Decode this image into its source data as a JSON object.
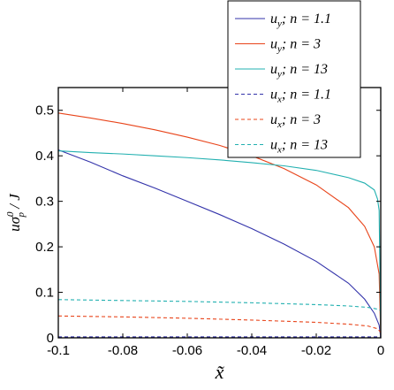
{
  "chart_data": {
    "type": "line",
    "title": "",
    "xlabel": "x̃",
    "ylabel_parts": {
      "u": "u",
      "sigma": "σ",
      "sub": "p",
      "sup": "0",
      "rest": " / J"
    },
    "xlim": [
      -0.1,
      0
    ],
    "ylim": [
      0,
      0.55
    ],
    "xticks": [
      -0.1,
      -0.08,
      -0.06,
      -0.04,
      -0.02,
      0
    ],
    "xtick_labels": [
      "-0.1",
      "-0.08",
      "-0.06",
      "-0.04",
      "-0.02",
      "0"
    ],
    "yticks": [
      0,
      0.1,
      0.2,
      0.3,
      0.4,
      0.5
    ],
    "ytick_labels": [
      "0",
      "0.1",
      "0.2",
      "0.3",
      "0.4",
      "0.5"
    ],
    "grid": false,
    "legend_placement": "top-right (outside above plot)",
    "series": [
      {
        "name": "u_y; n = 1.1",
        "label_var": "u",
        "label_sub": "y",
        "label_rest": "; n = 1.1",
        "color": "#3333aa",
        "dash": "solid",
        "x": [
          -0.1,
          -0.09,
          -0.08,
          -0.07,
          -0.06,
          -0.05,
          -0.04,
          -0.03,
          -0.02,
          -0.01,
          -0.005,
          -0.002,
          -0.0005,
          0
        ],
        "y": [
          0.413,
          0.386,
          0.356,
          0.329,
          0.3,
          0.271,
          0.24,
          0.206,
          0.168,
          0.12,
          0.085,
          0.054,
          0.028,
          0.0
        ]
      },
      {
        "name": "u_y; n = 3",
        "label_var": "u",
        "label_sub": "y",
        "label_rest": "; n = 3",
        "color": "#e8441a",
        "dash": "solid",
        "x": [
          -0.1,
          -0.09,
          -0.08,
          -0.07,
          -0.06,
          -0.05,
          -0.04,
          -0.03,
          -0.02,
          -0.01,
          -0.005,
          -0.002,
          -0.0005,
          0
        ],
        "y": [
          0.494,
          0.483,
          0.471,
          0.457,
          0.441,
          0.423,
          0.4,
          0.372,
          0.336,
          0.286,
          0.245,
          0.2,
          0.14,
          0.0
        ]
      },
      {
        "name": "u_y; n = 13",
        "label_var": "u",
        "label_sub": "y",
        "label_rest": "; n = 13",
        "color": "#22b0b0",
        "dash": "solid",
        "x": [
          -0.1,
          -0.09,
          -0.08,
          -0.07,
          -0.06,
          -0.05,
          -0.04,
          -0.03,
          -0.02,
          -0.01,
          -0.005,
          -0.002,
          -0.001,
          -0.0005,
          0
        ],
        "y": [
          0.411,
          0.407,
          0.404,
          0.4,
          0.396,
          0.391,
          0.385,
          0.378,
          0.368,
          0.352,
          0.34,
          0.325,
          0.305,
          0.28,
          0.0
        ]
      },
      {
        "name": "u_x; n = 1.1",
        "label_var": "u",
        "label_sub": "x",
        "label_rest": "; n = 1.1",
        "color": "#3333aa",
        "dash": "dashed",
        "x": [
          -0.1,
          -0.05,
          -0.02,
          -0.005,
          0
        ],
        "y": [
          0.002,
          0.002,
          0.002,
          0.002,
          0.002
        ]
      },
      {
        "name": "u_x; n = 3",
        "label_var": "u",
        "label_sub": "x",
        "label_rest": "; n = 3",
        "color": "#e8441a",
        "dash": "dashed",
        "x": [
          -0.1,
          -0.08,
          -0.06,
          -0.04,
          -0.02,
          -0.01,
          -0.004,
          -0.001,
          0
        ],
        "y": [
          0.048,
          0.046,
          0.043,
          0.039,
          0.034,
          0.03,
          0.026,
          0.02,
          0.012
        ]
      },
      {
        "name": "u_x; n = 13",
        "label_var": "u",
        "label_sub": "x",
        "label_rest": "; n = 13",
        "color": "#22b0b0",
        "dash": "dashed",
        "x": [
          -0.1,
          -0.08,
          -0.06,
          -0.04,
          -0.02,
          -0.01,
          -0.004,
          -0.001,
          0
        ],
        "y": [
          0.084,
          0.082,
          0.08,
          0.077,
          0.073,
          0.07,
          0.067,
          0.063,
          0.06
        ]
      }
    ]
  }
}
